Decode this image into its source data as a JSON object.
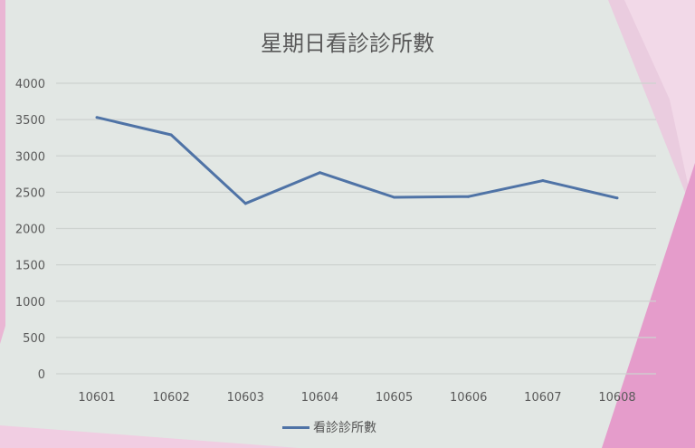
{
  "chart_data": {
    "type": "line",
    "title": "星期日看診診所數",
    "categories": [
      "10601",
      "10602",
      "10603",
      "10604",
      "10605",
      "10606",
      "10607",
      "10608"
    ],
    "series": [
      {
        "name": "看診診所數",
        "values": [
          3530,
          3290,
          2345,
          2770,
          2430,
          2440,
          2660,
          2420
        ],
        "color": "#4f73a6"
      }
    ],
    "ylim": [
      0,
      4000
    ],
    "yticks": [
      0,
      500,
      1000,
      1500,
      2000,
      2500,
      3000,
      3500,
      4000
    ],
    "grid": true,
    "legend": "bottom",
    "xlabel": "",
    "ylabel": ""
  },
  "colors": {
    "background": "#e2e7e4",
    "accent": "#e8a6cf"
  }
}
